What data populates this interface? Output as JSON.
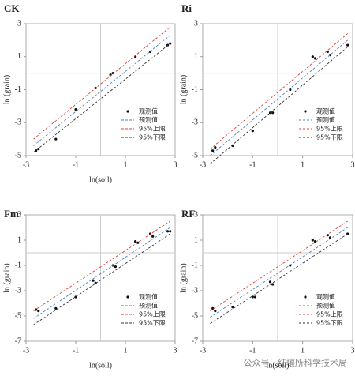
{
  "chart_data": [
    {
      "type": "scatter",
      "title": "CK",
      "x_label": "ln(soil)",
      "y_label": "ln (grain)",
      "xlim": [
        -3,
        3
      ],
      "xticks": [
        -3,
        -1,
        1,
        3
      ],
      "ylim": [
        -5,
        3
      ],
      "yticks": [
        -5,
        -3,
        -1,
        1,
        3
      ],
      "legend": "lower right",
      "series": [
        {
          "name": "观测值",
          "kind": "points",
          "color": "#111111",
          "x": [
            -2.6,
            -2.5,
            -1.8,
            -1.0,
            -0.2,
            0.4,
            0.5,
            1.4,
            2.0,
            2.7,
            2.8
          ],
          "values": [
            -4.7,
            -4.6,
            -4.0,
            -2.2,
            -0.9,
            -0.1,
            0.0,
            1.0,
            1.3,
            1.7,
            1.8
          ]
        },
        {
          "name": "预测值",
          "kind": "line",
          "color": "#4a7fc1",
          "x": [
            -2.7,
            2.8
          ],
          "values": [
            -4.4,
            2.3
          ]
        },
        {
          "name": "95%上限",
          "kind": "line",
          "color": "#d9413a",
          "x": [
            -2.7,
            2.8
          ],
          "values": [
            -4.0,
            2.8
          ]
        },
        {
          "name": "95%下限",
          "kind": "line",
          "color": "#333333",
          "x": [
            -2.7,
            2.8
          ],
          "values": [
            -4.8,
            1.8
          ]
        }
      ]
    },
    {
      "type": "scatter",
      "title": "Ri",
      "y_label": "ln (grain)",
      "xlim": [
        -3,
        3
      ],
      "xticks": [
        -3,
        -1,
        1,
        3
      ],
      "ylim": [
        -5,
        3
      ],
      "yticks": [
        -5,
        -3,
        -1,
        1,
        3
      ],
      "legend": "lower right",
      "series": [
        {
          "name": "观测值",
          "kind": "points",
          "color": "#111111",
          "x": [
            -2.6,
            -2.5,
            -1.8,
            -1.0,
            -0.3,
            -0.2,
            0.5,
            1.4,
            1.5,
            2.0,
            2.1,
            2.8
          ],
          "values": [
            -4.7,
            -4.5,
            -4.4,
            -3.5,
            -2.4,
            -2.4,
            -1.0,
            1.0,
            0.9,
            1.3,
            1.1,
            1.7
          ]
        },
        {
          "name": "预测值",
          "kind": "line",
          "color": "#4a7fc1",
          "x": [
            -2.7,
            2.8
          ],
          "values": [
            -5.0,
            2.0
          ]
        },
        {
          "name": "95%上限",
          "kind": "line",
          "color": "#d9413a",
          "x": [
            -2.7,
            2.8
          ],
          "values": [
            -4.6,
            2.4
          ]
        },
        {
          "name": "95%下限",
          "kind": "line",
          "color": "#333333",
          "x": [
            -2.7,
            2.8
          ],
          "values": [
            -5.5,
            1.6
          ]
        }
      ]
    },
    {
      "type": "scatter",
      "title": "Fm",
      "x_label": "ln(soil)",
      "y_label": "ln (grain)",
      "xlim": [
        -3,
        3
      ],
      "xticks": [
        -3,
        -1,
        1,
        3
      ],
      "ylim": [
        -7,
        3
      ],
      "yticks": [
        -7,
        -5,
        -3,
        -1,
        1,
        3
      ],
      "legend": "lower right",
      "series": [
        {
          "name": "观测值",
          "kind": "points",
          "color": "#111111",
          "x": [
            -2.6,
            -2.5,
            -1.8,
            -1.0,
            -0.3,
            -0.2,
            0.5,
            0.6,
            1.4,
            1.5,
            2.0,
            2.1,
            2.7,
            2.8
          ],
          "values": [
            -4.5,
            -4.6,
            -4.4,
            -3.5,
            -2.2,
            -2.4,
            -1.0,
            -1.1,
            0.9,
            0.8,
            1.5,
            1.3,
            1.7,
            1.7
          ]
        },
        {
          "name": "预测值",
          "kind": "line",
          "color": "#4a7fc1",
          "x": [
            -2.7,
            2.8
          ],
          "values": [
            -5.2,
            2.0
          ]
        },
        {
          "name": "95%上限",
          "kind": "line",
          "color": "#d9413a",
          "x": [
            -2.7,
            2.8
          ],
          "values": [
            -4.6,
            2.5
          ]
        },
        {
          "name": "95%下限",
          "kind": "line",
          "color": "#333333",
          "x": [
            -2.7,
            2.8
          ],
          "values": [
            -5.7,
            1.5
          ]
        }
      ]
    },
    {
      "type": "scatter",
      "title": "RF",
      "x_label": "ln(soil)",
      "y_label": "ln (grain)",
      "xlim": [
        -3,
        3
      ],
      "xticks": [
        -3,
        -1,
        1,
        3
      ],
      "ylim": [
        -7,
        3
      ],
      "yticks": [
        -7,
        -5,
        -3,
        -1,
        1,
        3
      ],
      "legend": "lower right",
      "series": [
        {
          "name": "观测值",
          "kind": "points",
          "color": "#111111",
          "x": [
            -2.6,
            -2.5,
            -1.8,
            -1.0,
            -0.9,
            -0.3,
            -0.2,
            0.5,
            1.4,
            1.5,
            2.0,
            2.1,
            2.8
          ],
          "values": [
            -4.4,
            -4.6,
            -4.3,
            -3.5,
            -3.5,
            -2.3,
            -2.5,
            -1.0,
            1.0,
            0.9,
            1.4,
            1.2,
            1.5
          ]
        },
        {
          "name": "预测值",
          "kind": "line",
          "color": "#4a7fc1",
          "x": [
            -2.7,
            2.8
          ],
          "values": [
            -5.1,
            2.0
          ]
        },
        {
          "name": "95%上限",
          "kind": "line",
          "color": "#d9413a",
          "x": [
            -2.7,
            2.8
          ],
          "values": [
            -4.6,
            2.5
          ]
        },
        {
          "name": "95%下限",
          "kind": "line",
          "color": "#333333",
          "x": [
            -2.7,
            2.8
          ],
          "values": [
            -5.6,
            1.5
          ]
        }
      ]
    }
  ],
  "watermark": "公众号 · 红壤所科学技术局"
}
